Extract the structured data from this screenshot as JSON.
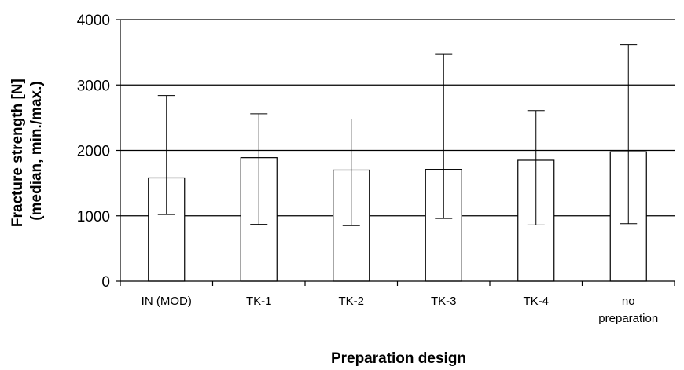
{
  "chart_data": {
    "type": "bar",
    "title": "",
    "xlabel": "Preparation design",
    "ylabel_lines": [
      "Fracture strength [N]",
      "(median, min./max.)"
    ],
    "categories": [
      [
        "IN (MOD)"
      ],
      [
        "TK-1"
      ],
      [
        "TK-2"
      ],
      [
        "TK-3"
      ],
      [
        "TK-4"
      ],
      [
        "no",
        "preparation"
      ]
    ],
    "series": [
      {
        "values": [
          1580,
          1890,
          1700,
          1710,
          1850,
          1980
        ],
        "min": [
          1020,
          870,
          850,
          960,
          860,
          880
        ],
        "max": [
          2840,
          2560,
          2480,
          3470,
          2610,
          3620
        ]
      }
    ],
    "ylim": [
      0,
      4000
    ],
    "yticks": [
      "0",
      "1000",
      "2000",
      "3000",
      "4000"
    ],
    "grid": true,
    "colors": {
      "bar_fill": "#ffffff",
      "stroke": "#000000"
    }
  }
}
